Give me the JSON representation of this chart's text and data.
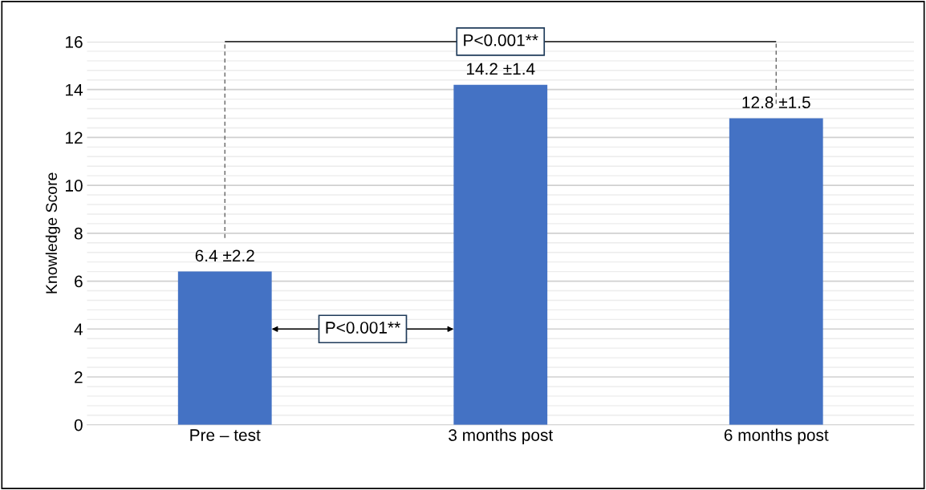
{
  "chart_data": {
    "type": "bar",
    "ylabel": "Knowledge Score",
    "categories": [
      "Pre – test",
      "3 months post",
      "6 months post"
    ],
    "values": [
      6.4,
      14.2,
      12.8
    ],
    "value_labels": [
      "6.4 ±2.2",
      "14.2 ±1.4",
      "12.8 ±1.5"
    ],
    "color": "#4472c4",
    "ylim": [
      0,
      16
    ],
    "yticks": [
      0,
      2,
      4,
      6,
      8,
      10,
      12,
      14,
      16
    ],
    "grid": "y",
    "annotations": [
      "P<0.001**",
      "P<0.001**"
    ]
  }
}
